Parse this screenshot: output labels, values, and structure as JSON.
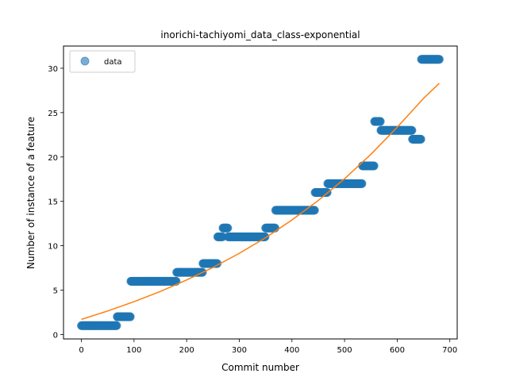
{
  "chart_data": {
    "type": "scatter",
    "title": "inorichi-tachiyomi_data_class-exponential",
    "xlabel": "Commit number",
    "ylabel": "Number of instance of a feature",
    "xlim": [
      -34,
      714
    ],
    "ylim": [
      -0.5,
      32.5
    ],
    "xticks": [
      0,
      100,
      200,
      300,
      400,
      500,
      600,
      700
    ],
    "yticks": [
      0,
      5,
      10,
      15,
      20,
      25,
      30
    ],
    "grid": false,
    "legend": {
      "placement": "top-left",
      "entries": [
        "data"
      ]
    },
    "colors": {
      "data": "#1f77b4",
      "fit": "#ff7f0e"
    },
    "series": [
      {
        "name": "data",
        "kind": "scatter",
        "segments": [
          {
            "x_start": 0,
            "x_end": 67,
            "y": 1
          },
          {
            "x_start": 68,
            "x_end": 93,
            "y": 2
          },
          {
            "x_start": 94,
            "x_end": 180,
            "y": 6
          },
          {
            "x_start": 181,
            "x_end": 230,
            "y": 7
          },
          {
            "x_start": 231,
            "x_end": 258,
            "y": 8
          },
          {
            "x_start": 259,
            "x_end": 268,
            "y": 11
          },
          {
            "x_start": 269,
            "x_end": 278,
            "y": 12
          },
          {
            "x_start": 279,
            "x_end": 349,
            "y": 11
          },
          {
            "x_start": 350,
            "x_end": 368,
            "y": 12
          },
          {
            "x_start": 369,
            "x_end": 443,
            "y": 14
          },
          {
            "x_start": 444,
            "x_end": 467,
            "y": 16
          },
          {
            "x_start": 468,
            "x_end": 533,
            "y": 17
          },
          {
            "x_start": 534,
            "x_end": 556,
            "y": 19
          },
          {
            "x_start": 557,
            "x_end": 568,
            "y": 24
          },
          {
            "x_start": 569,
            "x_end": 628,
            "y": 23
          },
          {
            "x_start": 629,
            "x_end": 645,
            "y": 22
          },
          {
            "x_start": 646,
            "x_end": 680,
            "y": 31
          }
        ]
      },
      {
        "kind": "line",
        "x": [
          0,
          50,
          100,
          150,
          200,
          250,
          300,
          350,
          400,
          450,
          500,
          550,
          600,
          650,
          680
        ],
        "values": [
          1.7,
          2.65,
          3.7,
          4.85,
          6.15,
          7.55,
          9.15,
          10.9,
          12.9,
          15.1,
          17.55,
          20.3,
          23.35,
          26.6,
          28.3
        ]
      }
    ]
  }
}
